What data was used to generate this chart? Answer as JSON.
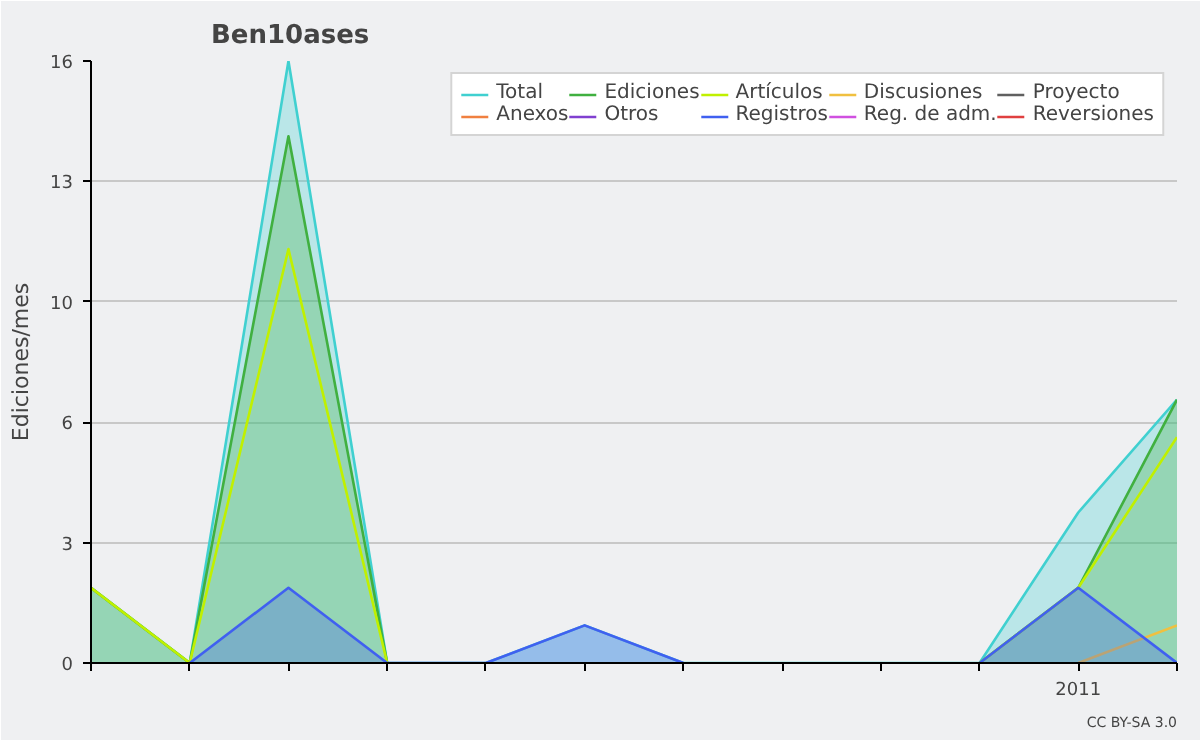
{
  "chart_data": {
    "type": "area",
    "title": "Ben10ases",
    "ylabel": "Ediciones/mes",
    "categories": [
      null,
      null,
      null,
      null,
      null,
      null,
      null,
      null,
      null,
      null,
      "2011",
      null
    ],
    "ylim": [
      0,
      16
    ],
    "yticks": [
      0,
      {
        "value": 3.2,
        "label": "3"
      },
      {
        "value": 6.4,
        "label": "6"
      },
      {
        "value": 9.6,
        "label": "10"
      },
      {
        "value": 12.8,
        "label": "13"
      },
      16
    ],
    "grid": "y",
    "legend": "top right",
    "annotations": [
      "CC BY-SA 3.0"
    ],
    "series": [
      {
        "name": "Total",
        "color": "#40d0d0",
        "values": [
          2.0,
          0,
          16,
          0,
          0,
          1.0,
          0,
          0,
          0,
          0,
          4.0,
          7.0
        ]
      },
      {
        "name": "Ediciones",
        "color": "#40b040",
        "values": [
          2.0,
          0,
          14.0,
          0,
          null,
          null,
          null,
          null,
          null,
          0,
          2.0,
          7.0
        ]
      },
      {
        "name": "Artículos",
        "type": "line",
        "color": "#c0f000",
        "values": [
          2.0,
          0,
          11.0,
          0,
          null,
          null,
          null,
          null,
          null,
          0,
          2.0,
          6.0
        ]
      },
      {
        "name": "Discusiones",
        "type": "line",
        "color": "#f0c040",
        "values": [
          null,
          null,
          null,
          null,
          null,
          null,
          null,
          null,
          null,
          null,
          0,
          1.0
        ]
      },
      {
        "name": "Proyecto",
        "type": "line",
        "color": "#606060",
        "values": [
          null,
          null,
          null,
          null,
          null,
          null,
          null,
          null,
          null,
          null,
          null,
          null
        ]
      },
      {
        "name": "Anexos",
        "type": "line",
        "color": "#f08040",
        "values": [
          null,
          null,
          null,
          null,
          null,
          null,
          null,
          null,
          null,
          null,
          null,
          null
        ]
      },
      {
        "name": "Otros",
        "type": "line",
        "color": "#8040d0",
        "values": [
          null,
          null,
          null,
          null,
          null,
          null,
          null,
          null,
          null,
          null,
          null,
          null
        ]
      },
      {
        "name": "Registros",
        "color": "#4060f0",
        "values": [
          null,
          0,
          2.0,
          0,
          0,
          1.0,
          0,
          null,
          null,
          0,
          2.0,
          0
        ]
      },
      {
        "name": "Reg. de adm.",
        "type": "line",
        "color": "#d050e0",
        "values": [
          null,
          null,
          null,
          null,
          null,
          null,
          null,
          null,
          null,
          null,
          null,
          null
        ]
      },
      {
        "name": "Reversiones",
        "type": "line",
        "color": "#e04040",
        "values": [
          null,
          null,
          null,
          null,
          null,
          null,
          null,
          null,
          null,
          null,
          null,
          null
        ]
      }
    ]
  }
}
